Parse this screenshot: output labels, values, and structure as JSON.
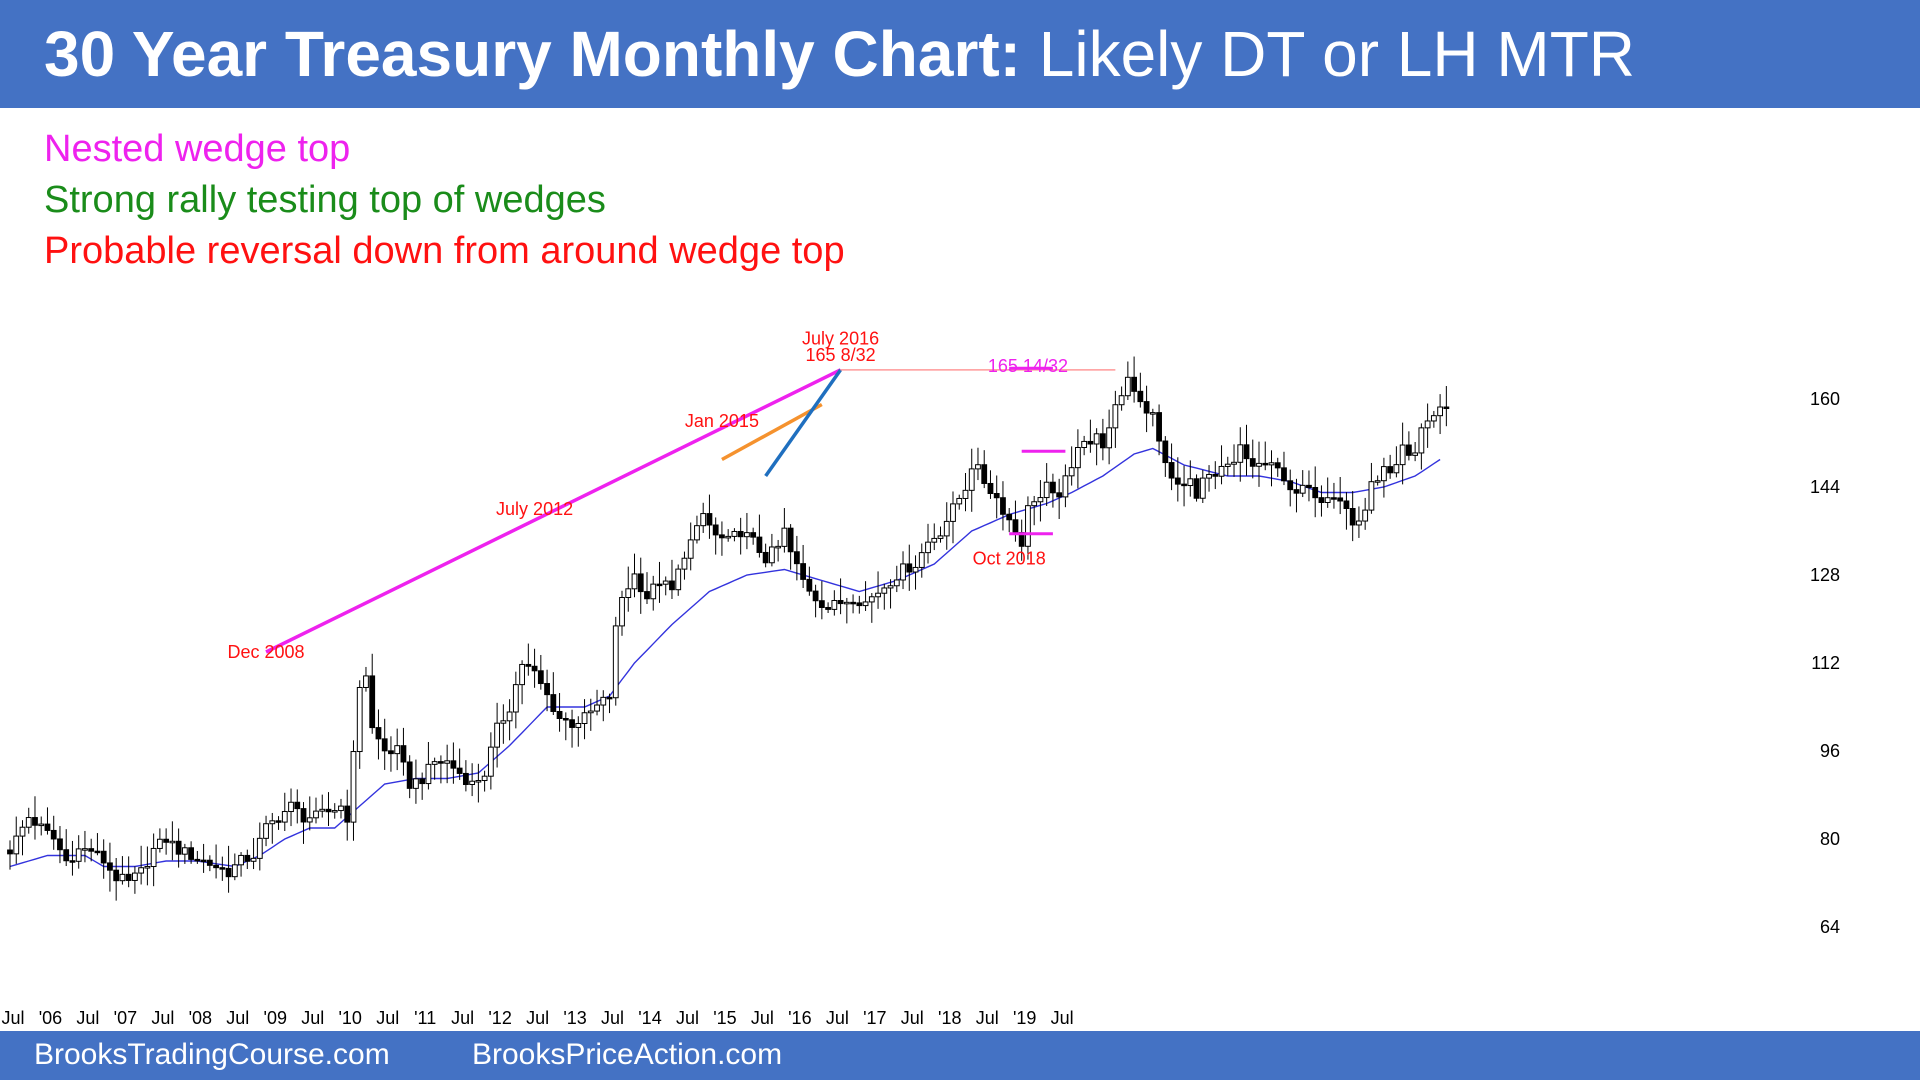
{
  "header": {
    "title_bold": "30 Year Treasury Monthly Chart:",
    "title_rest": "Likely DT or LH MTR"
  },
  "notes": [
    {
      "text": "Nested wedge top",
      "color": "#ee22ee"
    },
    {
      "text": "Strong rally testing top of wedges",
      "color": "#1a8c1a"
    },
    {
      "text": "Probable reversal down from around wedge top",
      "color": "#ff1111"
    }
  ],
  "footer": {
    "left": "BrooksTradingCourse.com",
    "right": "BrooksPriceAction.com"
  },
  "colors": {
    "brand_bar": "#4472c4",
    "wedge_line": "#ee22ee",
    "orange_line": "#f5922e",
    "blue_line": "#1f6fbf",
    "moving_average": "#3333dd",
    "annotation_red": "#ff1111"
  },
  "chart_data": {
    "type": "candlestick",
    "title": "30 Year Treasury Monthly Chart",
    "ylim": [
      59,
      168
    ],
    "y_ticks": [
      64,
      80,
      96,
      112,
      128,
      144,
      160
    ],
    "x_ticks": [
      "Jul",
      "'06",
      "Jul",
      "'07",
      "Jul",
      "'08",
      "Jul",
      "'09",
      "Jul",
      "'10",
      "Jul",
      "'11",
      "Jul",
      "'12",
      "Jul",
      "'13",
      "Jul",
      "'14",
      "Jul",
      "'15",
      "Jul",
      "'16",
      "Jul",
      "'17",
      "Jul",
      "'18",
      "Jul",
      "'19",
      "Jul"
    ],
    "start_label": "Jul 2005",
    "close_path": [
      [
        0,
        78
      ],
      [
        3,
        84
      ],
      [
        5,
        82
      ],
      [
        7,
        80
      ],
      [
        9,
        76
      ],
      [
        11,
        78
      ],
      [
        13,
        78
      ],
      [
        15,
        76
      ],
      [
        17,
        73
      ],
      [
        19,
        72
      ],
      [
        21,
        74
      ],
      [
        23,
        78
      ],
      [
        25,
        80
      ],
      [
        27,
        78
      ],
      [
        29,
        77
      ],
      [
        31,
        76
      ],
      [
        33,
        75
      ],
      [
        35,
        74
      ],
      [
        37,
        76
      ],
      [
        39,
        77
      ],
      [
        41,
        82
      ],
      [
        43,
        84
      ],
      [
        45,
        86
      ],
      [
        47,
        84
      ],
      [
        49,
        84
      ],
      [
        51,
        85
      ],
      [
        53,
        86
      ],
      [
        54,
        84
      ],
      [
        55,
        95
      ],
      [
        56,
        108
      ],
      [
        57,
        110
      ],
      [
        58,
        100
      ],
      [
        60,
        96
      ],
      [
        62,
        96
      ],
      [
        64,
        90
      ],
      [
        66,
        91
      ],
      [
        68,
        94
      ],
      [
        70,
        94
      ],
      [
        72,
        92
      ],
      [
        74,
        90
      ],
      [
        76,
        92
      ],
      [
        78,
        100
      ],
      [
        80,
        104
      ],
      [
        82,
        112
      ],
      [
        84,
        110
      ],
      [
        86,
        106
      ],
      [
        88,
        102
      ],
      [
        90,
        101
      ],
      [
        92,
        102
      ],
      [
        94,
        104
      ],
      [
        96,
        106
      ],
      [
        97,
        118
      ],
      [
        98,
        124
      ],
      [
        100,
        128
      ],
      [
        102,
        124
      ],
      [
        104,
        127
      ],
      [
        106,
        125
      ],
      [
        108,
        132
      ],
      [
        110,
        136
      ],
      [
        111,
        139
      ],
      [
        112,
        137
      ],
      [
        113,
        135
      ],
      [
        115,
        134
      ],
      [
        117,
        136
      ],
      [
        119,
        134
      ],
      [
        121,
        131
      ],
      [
        123,
        133
      ],
      [
        124,
        136
      ],
      [
        125,
        132
      ],
      [
        127,
        127
      ],
      [
        129,
        124
      ],
      [
        131,
        122
      ],
      [
        133,
        123
      ],
      [
        135,
        124
      ],
      [
        137,
        123
      ],
      [
        139,
        125
      ],
      [
        141,
        127
      ],
      [
        143,
        129
      ],
      [
        145,
        130
      ],
      [
        147,
        134
      ],
      [
        149,
        136
      ],
      [
        151,
        140
      ],
      [
        153,
        144
      ],
      [
        154,
        148
      ],
      [
        155,
        147
      ],
      [
        156,
        145
      ],
      [
        158,
        142
      ],
      [
        160,
        138
      ],
      [
        161,
        136
      ],
      [
        162,
        134
      ],
      [
        163,
        140
      ],
      [
        164,
        142
      ],
      [
        165,
        142
      ],
      [
        166,
        144
      ],
      [
        167,
        142
      ],
      [
        168,
        143
      ],
      [
        170,
        147
      ],
      [
        171,
        152
      ],
      [
        172,
        153
      ],
      [
        173,
        152
      ],
      [
        174,
        153
      ],
      [
        175,
        152
      ],
      [
        176,
        154
      ],
      [
        177,
        158
      ],
      [
        178,
        161
      ],
      [
        179,
        164
      ],
      [
        180,
        162
      ],
      [
        181,
        160
      ],
      [
        182,
        158
      ],
      [
        183,
        157
      ],
      [
        184,
        152
      ],
      [
        185,
        149
      ],
      [
        186,
        145
      ],
      [
        188,
        144
      ],
      [
        189,
        145
      ],
      [
        190,
        143
      ],
      [
        191,
        145
      ],
      [
        192,
        146
      ],
      [
        193,
        145
      ],
      [
        194,
        147
      ],
      [
        196,
        148
      ],
      [
        197,
        151
      ],
      [
        198,
        149
      ],
      [
        199,
        148
      ],
      [
        201,
        148
      ],
      [
        203,
        147
      ],
      [
        204,
        146
      ],
      [
        205,
        144
      ],
      [
        206,
        142
      ],
      [
        207,
        144
      ],
      [
        208,
        143
      ],
      [
        209,
        143
      ],
      [
        210,
        142
      ],
      [
        211,
        143
      ],
      [
        212,
        143
      ],
      [
        213,
        142
      ],
      [
        214,
        140
      ],
      [
        215,
        137
      ],
      [
        216,
        138
      ],
      [
        217,
        140
      ],
      [
        218,
        144
      ],
      [
        219,
        146
      ],
      [
        220,
        147
      ],
      [
        221,
        146
      ],
      [
        222,
        147
      ],
      [
        223,
        151
      ],
      [
        224,
        149
      ],
      [
        225,
        150
      ],
      [
        226,
        155
      ],
      [
        227,
        156
      ],
      [
        228,
        157
      ],
      [
        229,
        158
      ],
      [
        230,
        159
      ]
    ],
    "moving_average_path": [
      [
        0,
        75
      ],
      [
        6,
        77
      ],
      [
        12,
        77
      ],
      [
        15,
        75
      ],
      [
        20,
        75
      ],
      [
        25,
        76
      ],
      [
        30,
        76
      ],
      [
        36,
        75
      ],
      [
        40,
        77
      ],
      [
        44,
        80
      ],
      [
        48,
        82
      ],
      [
        52,
        82
      ],
      [
        56,
        86
      ],
      [
        60,
        90
      ],
      [
        65,
        91
      ],
      [
        70,
        91
      ],
      [
        75,
        92
      ],
      [
        80,
        97
      ],
      [
        86,
        104
      ],
      [
        92,
        104
      ],
      [
        96,
        106
      ],
      [
        100,
        112
      ],
      [
        106,
        119
      ],
      [
        112,
        125
      ],
      [
        118,
        128
      ],
      [
        124,
        129
      ],
      [
        130,
        127
      ],
      [
        136,
        125
      ],
      [
        142,
        127
      ],
      [
        148,
        130
      ],
      [
        154,
        136
      ],
      [
        160,
        139
      ],
      [
        166,
        141
      ],
      [
        170,
        143
      ],
      [
        175,
        146
      ],
      [
        180,
        150
      ],
      [
        183,
        151
      ],
      [
        188,
        148
      ],
      [
        195,
        146
      ],
      [
        200,
        146
      ],
      [
        205,
        145
      ],
      [
        210,
        143
      ],
      [
        215,
        143
      ],
      [
        220,
        144
      ],
      [
        225,
        146
      ],
      [
        229,
        149
      ]
    ],
    "start_price": 78,
    "end_price": 159,
    "annotations": [
      {
        "label": "Dec 2008",
        "month": 41,
        "value": 114,
        "color": "#ff1111"
      },
      {
        "label": "July 2012",
        "month": 84,
        "value": 140,
        "color": "#ff1111"
      },
      {
        "label": "Jan 2015",
        "month": 114,
        "value": 156,
        "color": "#ff1111"
      },
      {
        "label": "July 2016",
        "month": 133,
        "value": 171,
        "color": "#ff1111"
      },
      {
        "label": "165 8/32",
        "month": 133,
        "value": 168,
        "color": "#ff1111"
      },
      {
        "label": "165 14/32",
        "month": 163,
        "value": 166,
        "color": "#ee22ee"
      },
      {
        "label": "Oct 2018",
        "month": 160,
        "value": 131,
        "color": "#ff1111"
      }
    ],
    "lines": [
      {
        "name": "wedge-top-line",
        "from": [
          41,
          114
        ],
        "to": [
          133,
          165.3
        ],
        "color": "#ee22ee"
      },
      {
        "name": "orange-line",
        "from": [
          114,
          149
        ],
        "to": [
          130,
          159
        ],
        "color": "#f5922e"
      },
      {
        "name": "blue-line",
        "from": [
          121,
          146
        ],
        "to": [
          133,
          165.3
        ],
        "color": "#1f6fbf"
      },
      {
        "name": "resistance-line",
        "from": [
          133,
          165.3
        ],
        "to": [
          177,
          165.3
        ],
        "color": "#ff9999"
      }
    ]
  }
}
